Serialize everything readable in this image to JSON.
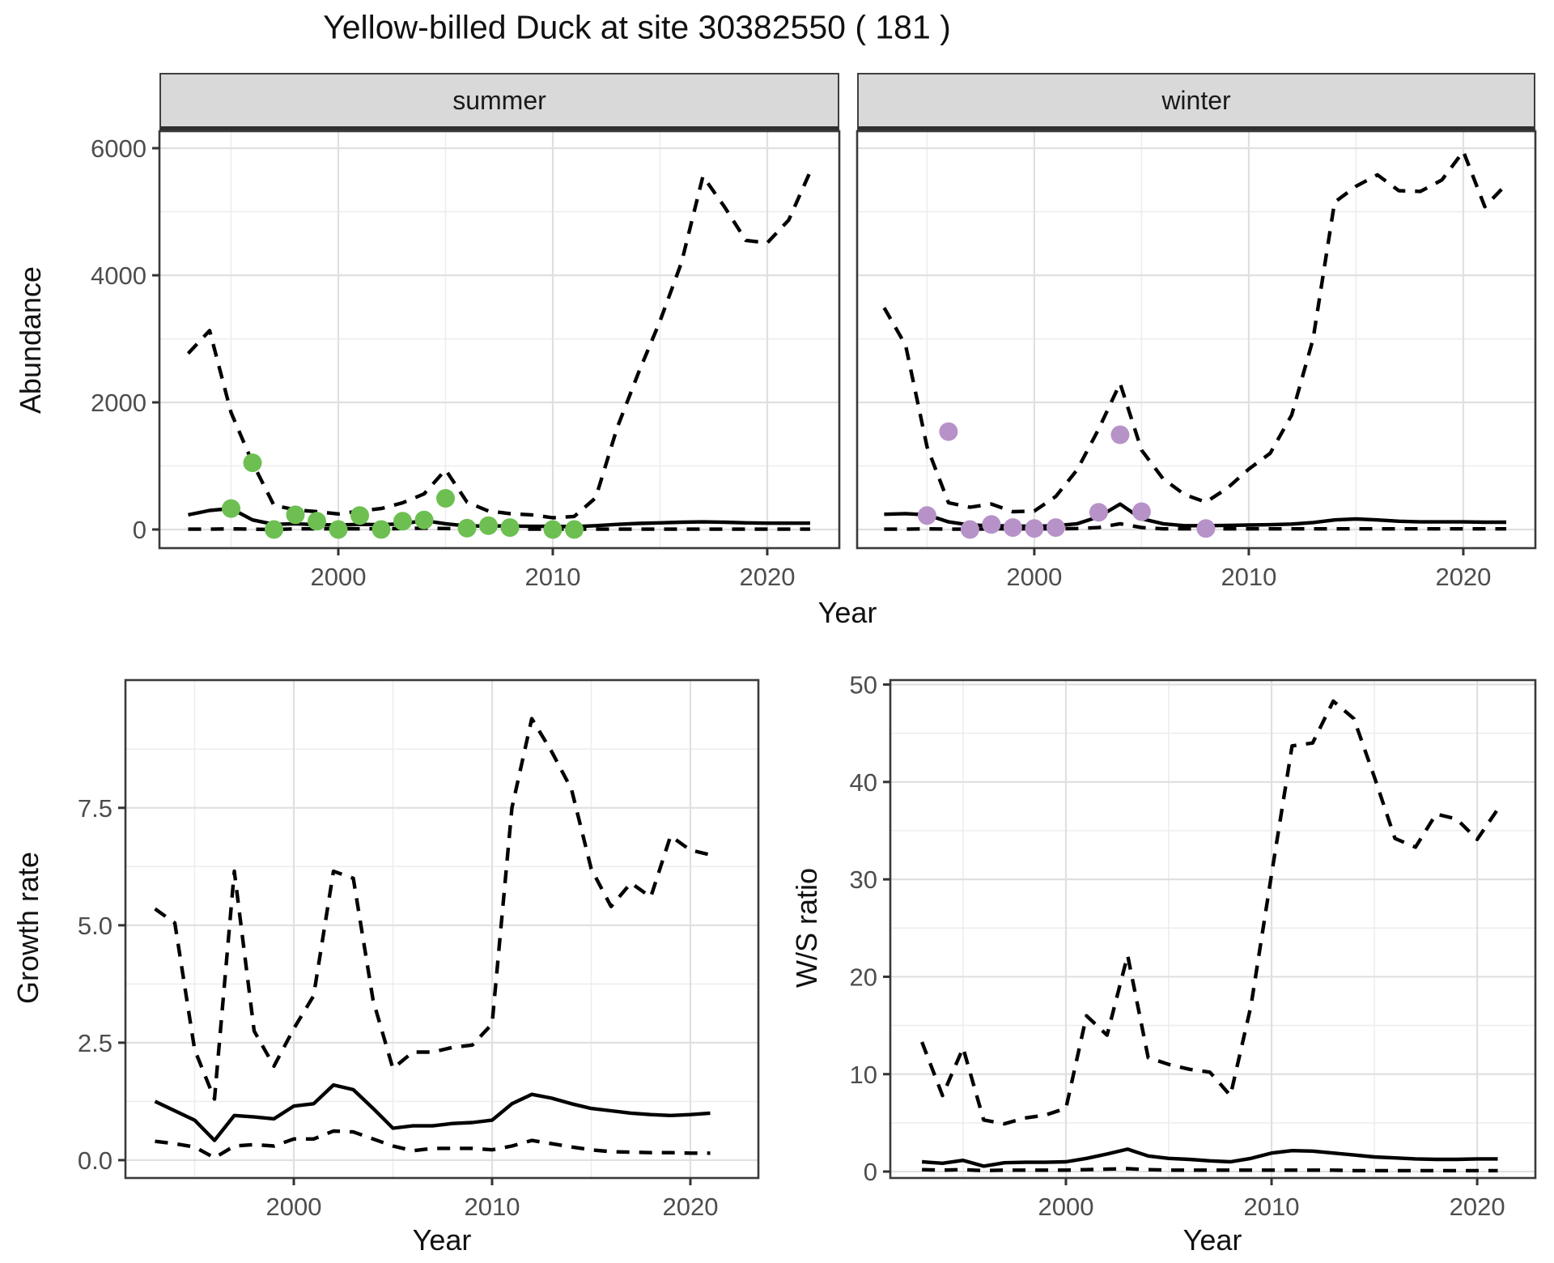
{
  "title": "Yellow-billed Duck at site 30382550 ( 181 )",
  "colors": {
    "summer_points": "#6dbf51",
    "winter_points": "#b792c8",
    "line": "#000000",
    "strip_bg": "#d9d9d9",
    "panel_border": "#3a3a3a",
    "grid_major": "#e0e0e0",
    "grid_minor": "#ededed",
    "tick_text": "#4d4d4d"
  },
  "axes": {
    "top_ylabel": "Abundance",
    "top_xlabel": "Year"
  },
  "chart_data": [
    {
      "type": "line",
      "panel": "summer-abundance",
      "facet": "summer",
      "ylabel": "Abundance",
      "xlabel": "Year",
      "ylim": [
        0,
        6270
      ],
      "x_ticks": [
        {
          "v": 2000,
          "label": "2000"
        },
        {
          "v": 2010,
          "label": "2010"
        },
        {
          "v": 2020,
          "label": "2020"
        }
      ],
      "y_ticks": [
        {
          "v": 0,
          "label": "0"
        },
        {
          "v": 2000,
          "label": "2000"
        },
        {
          "v": 4000,
          "label": "4000"
        },
        {
          "v": 6000,
          "label": "6000"
        }
      ],
      "series": [
        {
          "name": "upper_credible",
          "style": "dashed",
          "x": [
            1993,
            1994,
            1995,
            1996,
            1997,
            1998,
            1999,
            2000,
            2001,
            2002,
            2003,
            2004,
            2005,
            2006,
            2007,
            2008,
            2009,
            2010,
            2011,
            2012,
            2013,
            2014,
            2015,
            2016,
            2017,
            2018,
            2019,
            2020,
            2021,
            2022
          ],
          "values": [
            2770,
            3130,
            1840,
            1050,
            380,
            310,
            280,
            245,
            290,
            330,
            420,
            560,
            940,
            430,
            290,
            250,
            230,
            185,
            205,
            500,
            1600,
            2470,
            3280,
            4200,
            5560,
            5080,
            4550,
            4510,
            4870,
            5630
          ]
        },
        {
          "name": "median_estimate",
          "style": "solid",
          "x": [
            1993,
            1994,
            1995,
            1996,
            1997,
            1998,
            1999,
            2000,
            2001,
            2002,
            2003,
            2004,
            2005,
            2006,
            2007,
            2008,
            2009,
            2010,
            2011,
            2012,
            2013,
            2014,
            2015,
            2016,
            2017,
            2018,
            2019,
            2020,
            2021,
            2022
          ],
          "values": [
            230,
            300,
            330,
            150,
            80,
            90,
            75,
            70,
            80,
            75,
            90,
            140,
            90,
            55,
            55,
            55,
            50,
            50,
            45,
            60,
            80,
            95,
            105,
            115,
            120,
            115,
            105,
            100,
            100,
            100
          ]
        },
        {
          "name": "lower_credible",
          "style": "dashed",
          "x": [
            1993,
            1994,
            1995,
            1996,
            1997,
            1998,
            1999,
            2000,
            2001,
            2002,
            2003,
            2004,
            2005,
            2006,
            2007,
            2008,
            2009,
            2010,
            2011,
            2012,
            2013,
            2014,
            2015,
            2016,
            2017,
            2018,
            2019,
            2020,
            2021,
            2022
          ],
          "values": [
            5,
            5,
            10,
            5,
            0,
            10,
            10,
            10,
            10,
            10,
            15,
            20,
            15,
            10,
            10,
            10,
            5,
            5,
            5,
            5,
            5,
            5,
            5,
            5,
            5,
            5,
            5,
            5,
            5,
            5
          ]
        },
        {
          "name": "observed_counts",
          "style": "points",
          "color": "#6dbf51",
          "x": [
            1995,
            1996,
            1997,
            1998,
            1999,
            2000,
            2001,
            2002,
            2003,
            2004,
            2005,
            2006,
            2007,
            2008,
            2010,
            2011
          ],
          "values": [
            330,
            1050,
            0,
            230,
            130,
            0,
            220,
            0,
            130,
            150,
            490,
            20,
            60,
            30,
            0,
            0
          ]
        }
      ]
    },
    {
      "type": "line",
      "panel": "winter-abundance",
      "facet": "winter",
      "ylabel": "Abundance",
      "xlabel": "Year",
      "ylim": [
        0,
        6270
      ],
      "x_ticks": [
        {
          "v": 2000,
          "label": "2000"
        },
        {
          "v": 2010,
          "label": "2010"
        },
        {
          "v": 2020,
          "label": "2020"
        }
      ],
      "y_ticks": [
        {
          "v": 0,
          "label": "0"
        },
        {
          "v": 2000,
          "label": "2000"
        },
        {
          "v": 4000,
          "label": "4000"
        },
        {
          "v": 6000,
          "label": "6000"
        }
      ],
      "series": [
        {
          "name": "upper_credible",
          "style": "dashed",
          "x": [
            1993,
            1994,
            1995,
            1996,
            1997,
            1998,
            1999,
            2000,
            2001,
            2002,
            2003,
            2004,
            2005,
            2006,
            2007,
            2008,
            2009,
            2010,
            2011,
            2012,
            2013,
            2014,
            2015,
            2016,
            2017,
            2018,
            2019,
            2020,
            2021,
            2022
          ],
          "values": [
            3490,
            2900,
            1300,
            420,
            350,
            400,
            280,
            290,
            520,
            940,
            1580,
            2300,
            1250,
            800,
            550,
            430,
            650,
            950,
            1200,
            1800,
            3000,
            5150,
            5400,
            5580,
            5330,
            5320,
            5500,
            5950,
            5080,
            5430
          ]
        },
        {
          "name": "median_estimate",
          "style": "solid",
          "x": [
            1993,
            1994,
            1995,
            1996,
            1997,
            1998,
            1999,
            2000,
            2001,
            2002,
            2003,
            2004,
            2005,
            2006,
            2007,
            2008,
            2009,
            2010,
            2011,
            2012,
            2013,
            2014,
            2015,
            2016,
            2017,
            2018,
            2019,
            2020,
            2021,
            2022
          ],
          "values": [
            240,
            250,
            230,
            120,
            70,
            60,
            55,
            50,
            60,
            90,
            200,
            400,
            170,
            90,
            60,
            60,
            65,
            70,
            75,
            85,
            110,
            150,
            165,
            150,
            130,
            120,
            120,
            120,
            115,
            115
          ]
        },
        {
          "name": "lower_credible",
          "style": "dashed",
          "x": [
            1993,
            1994,
            1995,
            1996,
            1997,
            1998,
            1999,
            2000,
            2001,
            2002,
            2003,
            2004,
            2005,
            2006,
            2007,
            2008,
            2009,
            2010,
            2011,
            2012,
            2013,
            2014,
            2015,
            2016,
            2017,
            2018,
            2019,
            2020,
            2021,
            2022
          ],
          "values": [
            5,
            5,
            10,
            5,
            5,
            10,
            10,
            10,
            10,
            15,
            30,
            90,
            30,
            10,
            10,
            10,
            10,
            10,
            10,
            10,
            10,
            10,
            10,
            10,
            10,
            10,
            10,
            10,
            10,
            10
          ]
        },
        {
          "name": "observed_counts",
          "style": "points",
          "color": "#b792c8",
          "x": [
            1995,
            1996,
            1997,
            1998,
            1999,
            2000,
            2001,
            2003,
            2004,
            2005,
            2008
          ],
          "values": [
            220,
            1540,
            0,
            80,
            30,
            15,
            30,
            270,
            1490,
            280,
            15
          ]
        }
      ]
    },
    {
      "type": "line",
      "panel": "growth-rate",
      "facet": "",
      "ylabel": "Growth rate",
      "xlabel": "Year",
      "ylim": [
        0,
        10.2
      ],
      "x_ticks": [
        {
          "v": 2000,
          "label": "2000"
        },
        {
          "v": 2010,
          "label": "2010"
        },
        {
          "v": 2020,
          "label": "2020"
        }
      ],
      "y_ticks": [
        {
          "v": 0,
          "label": "0.0"
        },
        {
          "v": 2.5,
          "label": "2.5"
        },
        {
          "v": 5,
          "label": "5.0"
        },
        {
          "v": 7.5,
          "label": "7.5"
        }
      ],
      "series": [
        {
          "name": "upper_credible",
          "style": "dashed",
          "x": [
            1993,
            1994,
            1995,
            1996,
            1997,
            1998,
            1999,
            2000,
            2001,
            2002,
            2003,
            2004,
            2005,
            2006,
            2007,
            2008,
            2009,
            2010,
            2011,
            2012,
            2013,
            2014,
            2015,
            2016,
            2017,
            2018,
            2019,
            2020,
            2021
          ],
          "values": [
            5.35,
            5.05,
            2.35,
            1.3,
            6.15,
            2.75,
            2.0,
            2.8,
            3.5,
            6.15,
            6.0,
            3.4,
            1.95,
            2.3,
            2.3,
            2.4,
            2.45,
            2.9,
            7.5,
            9.4,
            8.7,
            7.9,
            6.2,
            5.4,
            5.9,
            5.6,
            6.9,
            6.6,
            6.5
          ]
        },
        {
          "name": "median_estimate",
          "style": "solid",
          "x": [
            1993,
            1994,
            1995,
            1996,
            1997,
            1998,
            1999,
            2000,
            2001,
            2002,
            2003,
            2004,
            2005,
            2006,
            2007,
            2008,
            2009,
            2010,
            2011,
            2012,
            2013,
            2014,
            2015,
            2016,
            2017,
            2018,
            2019,
            2020,
            2021
          ],
          "values": [
            1.25,
            1.05,
            0.85,
            0.42,
            0.95,
            0.92,
            0.88,
            1.15,
            1.2,
            1.6,
            1.5,
            1.1,
            0.68,
            0.73,
            0.73,
            0.78,
            0.8,
            0.85,
            1.2,
            1.4,
            1.32,
            1.2,
            1.1,
            1.05,
            1.0,
            0.97,
            0.95,
            0.97,
            1.0
          ]
        },
        {
          "name": "lower_credible",
          "style": "dashed",
          "x": [
            1993,
            1994,
            1995,
            1996,
            1997,
            1998,
            1999,
            2000,
            2001,
            2002,
            2003,
            2004,
            2005,
            2006,
            2007,
            2008,
            2009,
            2010,
            2011,
            2012,
            2013,
            2014,
            2015,
            2016,
            2017,
            2018,
            2019,
            2020,
            2021
          ],
          "values": [
            0.4,
            0.35,
            0.28,
            0.05,
            0.3,
            0.33,
            0.3,
            0.45,
            0.45,
            0.62,
            0.6,
            0.45,
            0.3,
            0.2,
            0.25,
            0.25,
            0.25,
            0.22,
            0.3,
            0.42,
            0.35,
            0.28,
            0.22,
            0.18,
            0.17,
            0.16,
            0.16,
            0.15,
            0.15
          ]
        }
      ]
    },
    {
      "type": "line",
      "panel": "ws-ratio",
      "facet": "",
      "ylabel": "W/S ratio",
      "xlabel": "Year",
      "ylim": [
        0,
        50.5
      ],
      "x_ticks": [
        {
          "v": 2000,
          "label": "2000"
        },
        {
          "v": 2010,
          "label": "2010"
        },
        {
          "v": 2020,
          "label": "2020"
        }
      ],
      "y_ticks": [
        {
          "v": 0,
          "label": "0"
        },
        {
          "v": 10,
          "label": "10"
        },
        {
          "v": 20,
          "label": "20"
        },
        {
          "v": 30,
          "label": "30"
        },
        {
          "v": 40,
          "label": "40"
        },
        {
          "v": 50,
          "label": "50"
        }
      ],
      "series": [
        {
          "name": "upper_credible",
          "style": "dashed",
          "x": [
            1993,
            1994,
            1995,
            1996,
            1997,
            1998,
            1999,
            2000,
            2001,
            2002,
            2003,
            2004,
            2005,
            2006,
            2007,
            2008,
            2009,
            2010,
            2011,
            2012,
            2013,
            2014,
            2015,
            2016,
            2017,
            2018,
            2019,
            2020,
            2021
          ],
          "values": [
            13.3,
            7.8,
            12.7,
            5.3,
            4.9,
            5.5,
            5.8,
            6.5,
            16.0,
            14.0,
            22.2,
            11.7,
            11.0,
            10.5,
            10.2,
            7.8,
            17.0,
            30.5,
            43.7,
            44.0,
            48.3,
            46.5,
            40.5,
            34.2,
            33.3,
            36.7,
            36.2,
            34.1,
            37.2
          ]
        },
        {
          "name": "median_estimate",
          "style": "solid",
          "x": [
            1993,
            1994,
            1995,
            1996,
            1997,
            1998,
            1999,
            2000,
            2001,
            2002,
            2003,
            2004,
            2005,
            2006,
            2007,
            2008,
            2009,
            2010,
            2011,
            2012,
            2013,
            2014,
            2015,
            2016,
            2017,
            2018,
            2019,
            2020,
            2021
          ],
          "values": [
            1.0,
            0.85,
            1.15,
            0.55,
            0.9,
            0.95,
            0.95,
            1.0,
            1.35,
            1.8,
            2.3,
            1.6,
            1.35,
            1.25,
            1.1,
            1.0,
            1.35,
            1.9,
            2.15,
            2.1,
            1.9,
            1.7,
            1.5,
            1.4,
            1.3,
            1.25,
            1.25,
            1.3,
            1.3
          ]
        },
        {
          "name": "lower_credible",
          "style": "dashed",
          "x": [
            1993,
            1994,
            1995,
            1996,
            1997,
            1998,
            1999,
            2000,
            2001,
            2002,
            2003,
            2004,
            2005,
            2006,
            2007,
            2008,
            2009,
            2010,
            2011,
            2012,
            2013,
            2014,
            2015,
            2016,
            2017,
            2018,
            2019,
            2020,
            2021
          ],
          "values": [
            0.2,
            0.15,
            0.2,
            0.1,
            0.15,
            0.15,
            0.15,
            0.15,
            0.2,
            0.25,
            0.3,
            0.2,
            0.15,
            0.15,
            0.15,
            0.15,
            0.15,
            0.15,
            0.15,
            0.15,
            0.15,
            0.1,
            0.1,
            0.1,
            0.1,
            0.1,
            0.1,
            0.1,
            0.1
          ]
        }
      ]
    }
  ]
}
